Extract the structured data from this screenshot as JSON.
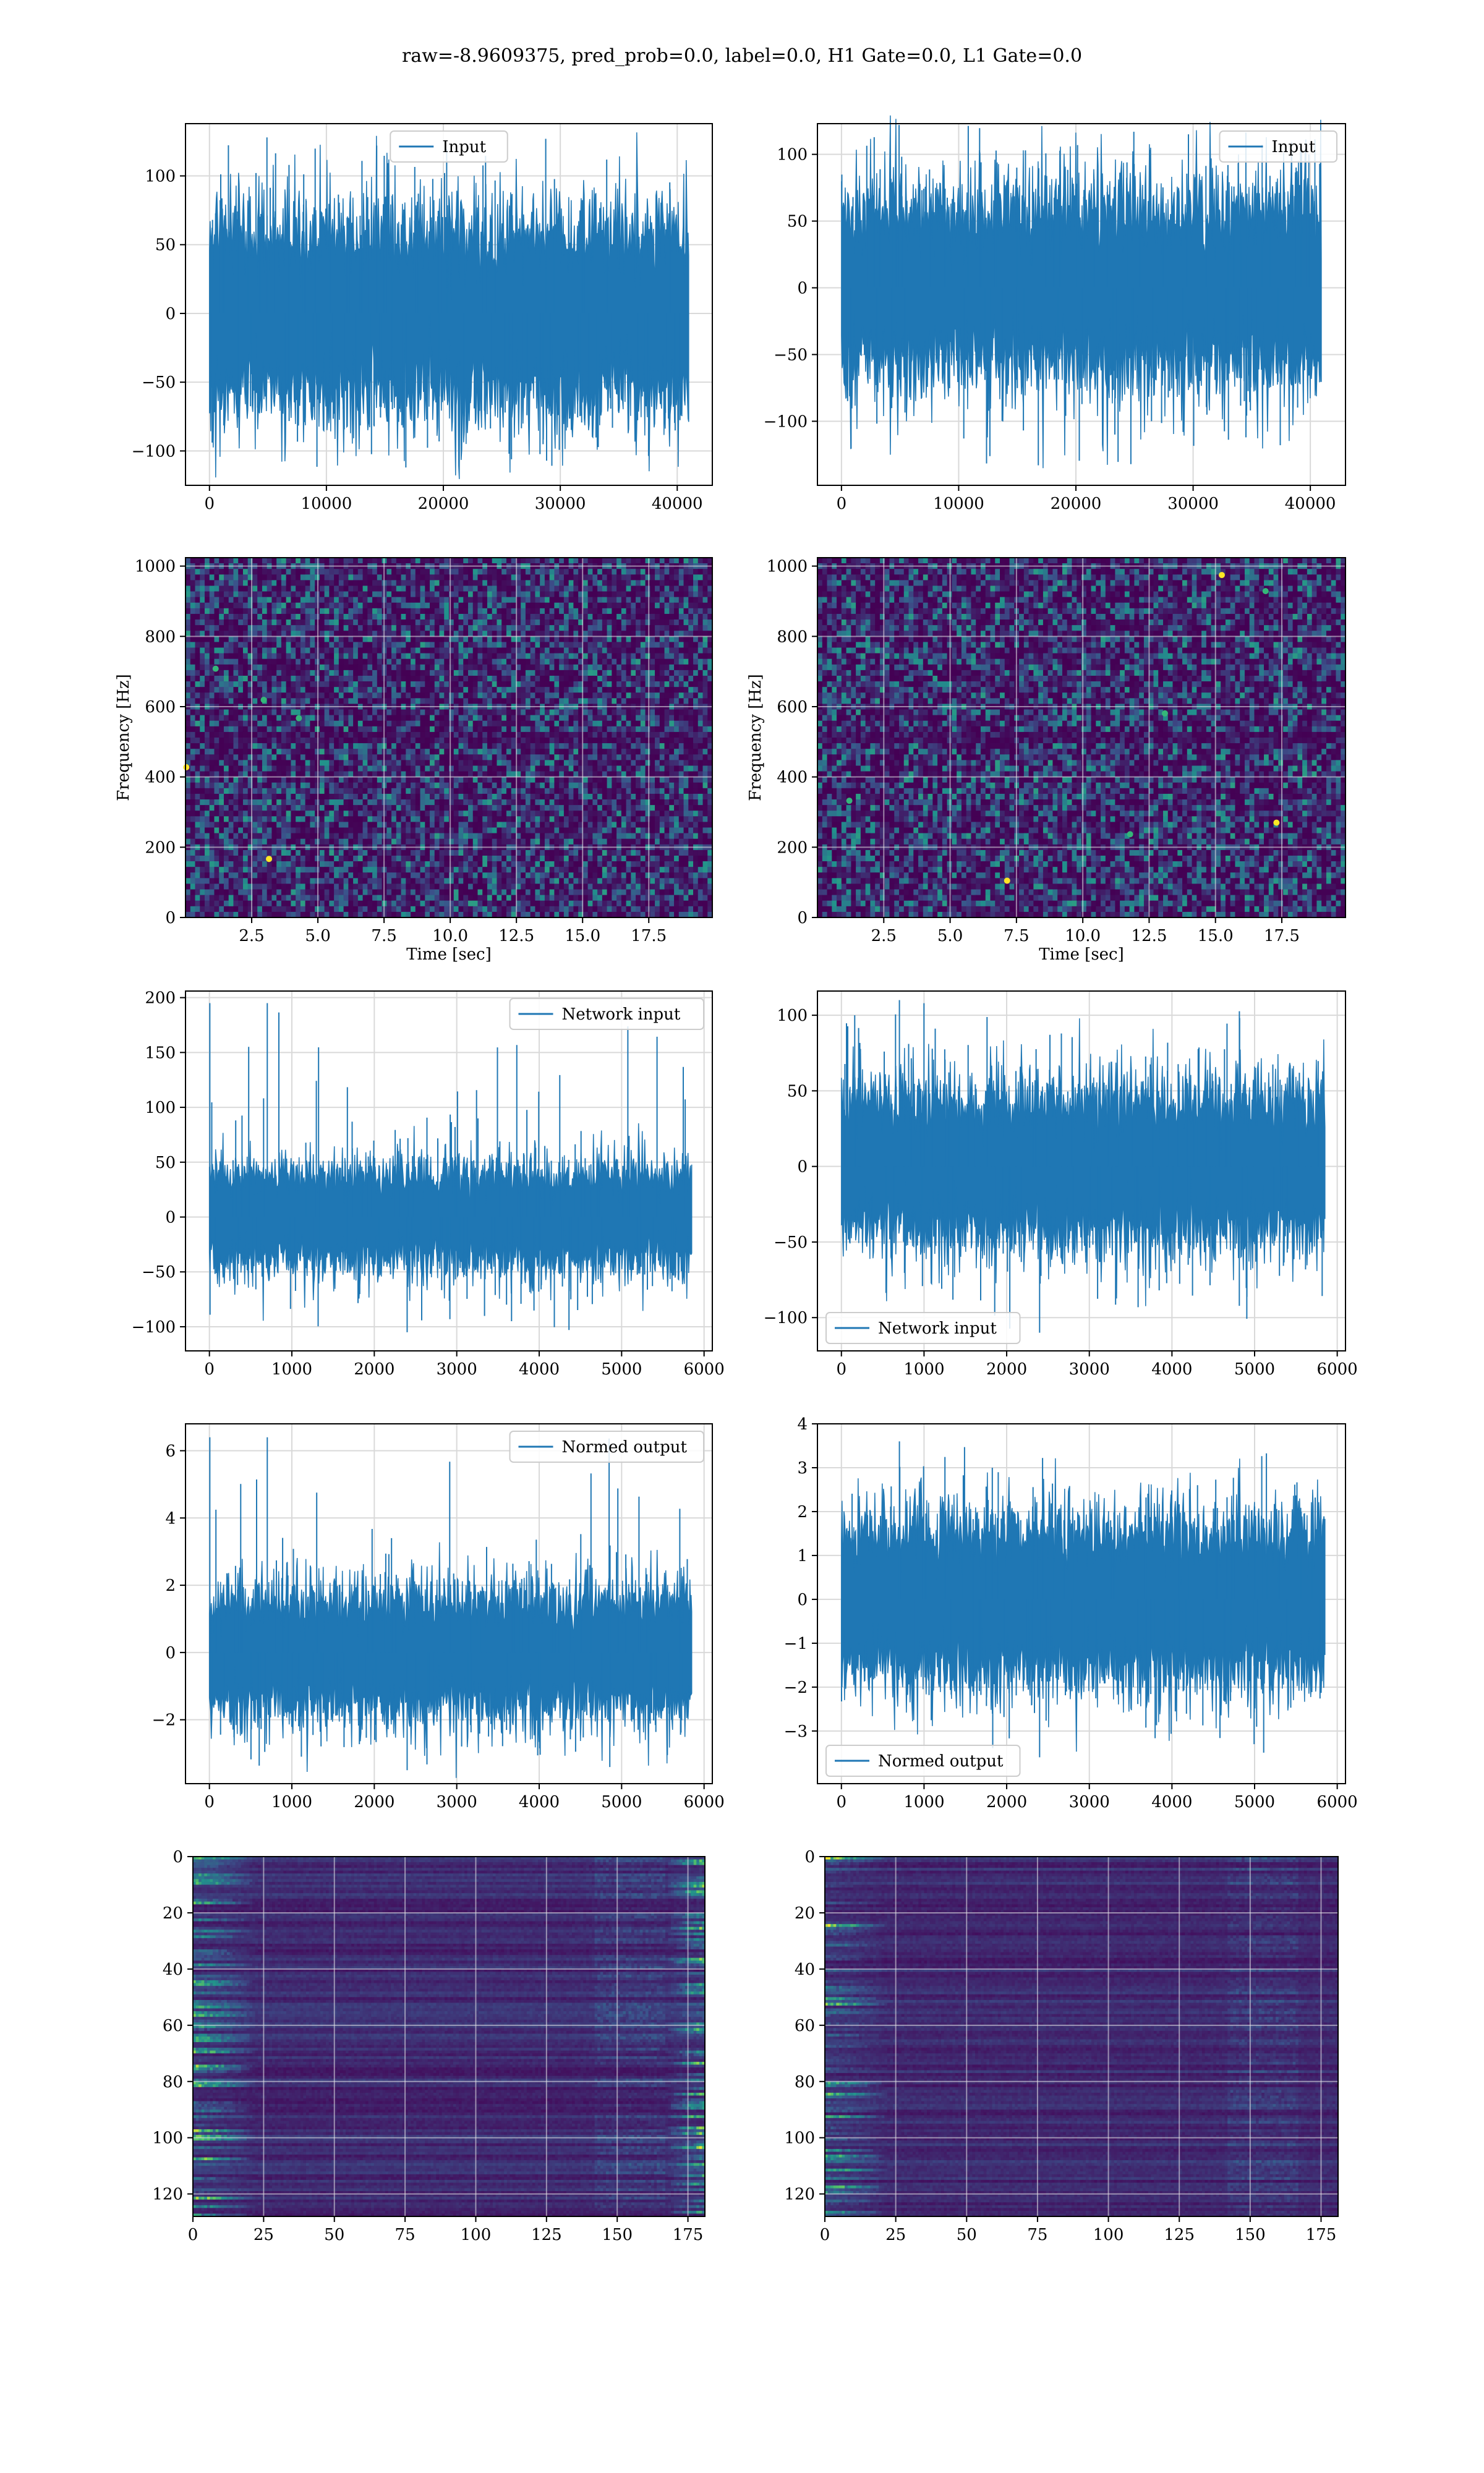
{
  "figure": {
    "suptitle": "raw=-8.9609375, pred_prob=0.0, label=0.0, H1 Gate=0.0, L1 Gate=0.0"
  },
  "colors": {
    "line": "#1f77b4",
    "grid": "#d9d9d9",
    "viridis_dark": "#440154",
    "viridis_mid": "#31688e",
    "viridis_green": "#35b779",
    "viridis_yellow": "#fde725"
  },
  "chart_data": [
    {
      "id": "h1_input",
      "type": "line",
      "legend": "Input",
      "legend_loc": "upper-center",
      "xlim": [
        -2050,
        43000
      ],
      "ylim": [
        -125,
        138
      ],
      "xticks": [
        0,
        10000,
        20000,
        30000,
        40000
      ],
      "yticks": [
        -100,
        -50,
        0,
        50,
        100
      ],
      "series": [
        {
          "name": "Input",
          "x_range": [
            0,
            40960
          ],
          "typical_amplitude": 75,
          "max": 128,
          "min": -112,
          "spike_at": null
        }
      ]
    },
    {
      "id": "l1_input",
      "type": "line",
      "legend": "Input",
      "legend_loc": "upper-right",
      "xlim": [
        -2050,
        43000
      ],
      "ylim": [
        -148,
        123
      ],
      "xticks": [
        0,
        10000,
        20000,
        30000,
        40000
      ],
      "yticks": [
        -100,
        -50,
        0,
        50,
        100
      ],
      "series": [
        {
          "name": "Input",
          "x_range": [
            0,
            40960
          ],
          "typical_amplitude": 75,
          "max": 122,
          "min": -133,
          "spike_at": null
        }
      ]
    },
    {
      "id": "h1_spectrogram",
      "type": "heatmap",
      "xlim": [
        0,
        19.9
      ],
      "ylim": [
        0,
        1024
      ],
      "xticks": [
        2.5,
        5.0,
        7.5,
        10.0,
        12.5,
        15.0,
        17.5
      ],
      "yticks": [
        0,
        200,
        400,
        600,
        800,
        1000
      ],
      "xlabel": "Time [sec]",
      "ylabel": "Frequency [Hz]",
      "dark_band_hz": [
        500,
        520
      ],
      "bright_points": 5
    },
    {
      "id": "l1_spectrogram",
      "type": "heatmap",
      "xlim": [
        0,
        19.9
      ],
      "ylim": [
        0,
        1024
      ],
      "xticks": [
        2.5,
        5.0,
        7.5,
        10.0,
        12.5,
        15.0,
        17.5
      ],
      "yticks": [
        0,
        200,
        400,
        600,
        800,
        1000
      ],
      "xlabel": "Time [sec]",
      "ylabel": "Frequency [Hz]",
      "dark_band_hz": [
        500,
        520
      ],
      "bright_points": 7
    },
    {
      "id": "h1_network_input",
      "type": "line",
      "legend": "Network input",
      "legend_loc": "upper-right",
      "xlim": [
        -290,
        6100
      ],
      "ylim": [
        -122,
        206
      ],
      "xticks": [
        0,
        1000,
        2000,
        3000,
        4000,
        5000,
        6000
      ],
      "yticks": [
        -100,
        -50,
        0,
        50,
        100,
        150,
        200
      ],
      "series": [
        {
          "name": "Network input",
          "x_range": [
            0,
            5850
          ],
          "typical_amplitude": 50,
          "max": 195,
          "min": -105,
          "spike_at": 5
        }
      ]
    },
    {
      "id": "l1_network_input",
      "type": "line",
      "legend": "Network input",
      "legend_loc": "lower-left",
      "xlim": [
        -290,
        6100
      ],
      "ylim": [
        -122,
        116
      ],
      "xticks": [
        0,
        1000,
        2000,
        3000,
        4000,
        5000,
        6000
      ],
      "yticks": [
        -100,
        -50,
        0,
        50,
        100
      ],
      "series": [
        {
          "name": "Network input",
          "x_range": [
            0,
            5850
          ],
          "typical_amplitude": 55,
          "max": 110,
          "min": -110,
          "spike_at": null
        }
      ]
    },
    {
      "id": "h1_normed_output",
      "type": "line",
      "legend": "Normed output",
      "legend_loc": "upper-right",
      "xlim": [
        -290,
        6100
      ],
      "ylim": [
        -3.9,
        6.8
      ],
      "xticks": [
        0,
        1000,
        2000,
        3000,
        4000,
        5000,
        6000
      ],
      "yticks": [
        -2,
        0,
        2,
        4,
        6
      ],
      "series": [
        {
          "name": "Normed output",
          "x_range": [
            0,
            5850
          ],
          "typical_amplitude": 2.0,
          "max": 6.4,
          "min": -3.5,
          "spike_at": 5
        }
      ]
    },
    {
      "id": "l1_normed_output",
      "type": "line",
      "legend": "Normed output",
      "legend_loc": "lower-left",
      "xlim": [
        -290,
        6100
      ],
      "ylim": [
        -4.2,
        4.0
      ],
      "xticks": [
        0,
        1000,
        2000,
        3000,
        4000,
        5000,
        6000
      ],
      "yticks": [
        -3,
        -2,
        -1,
        0,
        1,
        2,
        3,
        4
      ],
      "series": [
        {
          "name": "Normed output",
          "x_range": [
            0,
            5850
          ],
          "typical_amplitude": 2.0,
          "max": 3.6,
          "min": -3.6,
          "spike_at": null
        }
      ]
    },
    {
      "id": "h1_feature_map",
      "type": "heatmap",
      "xlim": [
        0,
        181
      ],
      "ylim": [
        128,
        0
      ],
      "xticks": [
        0,
        25,
        50,
        75,
        100,
        125,
        150,
        175
      ],
      "yticks": [
        0,
        20,
        40,
        60,
        80,
        100,
        120
      ],
      "bright_edges": [
        "left",
        "right"
      ]
    },
    {
      "id": "l1_feature_map",
      "type": "heatmap",
      "xlim": [
        0,
        181
      ],
      "ylim": [
        128,
        0
      ],
      "xticks": [
        0,
        25,
        50,
        75,
        100,
        125,
        150,
        175
      ],
      "yticks": [
        0,
        20,
        40,
        60,
        80,
        100,
        120
      ],
      "bright_edges": [
        "left"
      ]
    }
  ]
}
